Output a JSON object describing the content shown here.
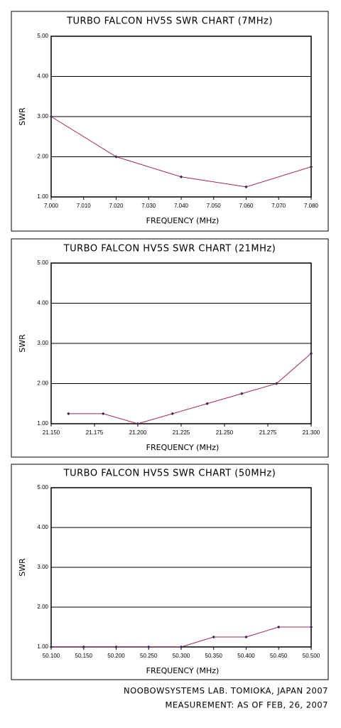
{
  "chart_data": [
    {
      "type": "line",
      "title": "TURBO FALCON HV5S SWR CHART (7MHz)",
      "xlabel": "FREQUENCY (MHz)",
      "ylabel": "SWR",
      "x": [
        7.0,
        7.02,
        7.04,
        7.06,
        7.08
      ],
      "series": [
        {
          "color": "#9b2a5a",
          "values": [
            3.0,
            2.0,
            1.5,
            1.25,
            1.75
          ]
        }
      ],
      "marker_color": "#3a2a4a",
      "xlim": [
        7.0,
        7.08
      ],
      "xticks": [
        {
          "value": 7.0,
          "label": "7.000"
        },
        {
          "value": 7.01,
          "label": "7.010"
        },
        {
          "value": 7.02,
          "label": "7.020"
        },
        {
          "value": 7.03,
          "label": "7.030"
        },
        {
          "value": 7.04,
          "label": "7.040"
        },
        {
          "value": 7.05,
          "label": "7.050"
        },
        {
          "value": 7.06,
          "label": "7.060"
        },
        {
          "value": 7.07,
          "label": "7.070"
        },
        {
          "value": 7.08,
          "label": "7.080"
        }
      ],
      "ylim": [
        1,
        5
      ],
      "yticks": [
        {
          "value": 1,
          "label": "1.00"
        },
        {
          "value": 2,
          "label": "2.00"
        },
        {
          "value": 3,
          "label": "3.00"
        },
        {
          "value": 4,
          "label": "4.00"
        },
        {
          "value": 5,
          "label": "5.00"
        }
      ],
      "grid": true
    },
    {
      "type": "line",
      "title": "TURBO FALCON HV5S SWR CHART (21MHz)",
      "xlabel": "FREQUENCY (MHz)",
      "ylabel": "SWR",
      "x": [
        21.16,
        21.18,
        21.2,
        21.22,
        21.24,
        21.26,
        21.28,
        21.3
      ],
      "series": [
        {
          "color": "#9b2a5a",
          "values": [
            1.25,
            1.25,
            1.0,
            1.25,
            1.5,
            1.75,
            2.0,
            2.75
          ]
        }
      ],
      "marker_color": "#3a2a4a",
      "xlim": [
        21.15,
        21.3
      ],
      "xticks": [
        {
          "value": 21.15,
          "label": "21.150"
        },
        {
          "value": 21.175,
          "label": "21.175"
        },
        {
          "value": 21.2,
          "label": "21.200"
        },
        {
          "value": 21.225,
          "label": "21.225"
        },
        {
          "value": 21.25,
          "label": "21.250"
        },
        {
          "value": 21.275,
          "label": "21.275"
        },
        {
          "value": 21.3,
          "label": "21.300"
        }
      ],
      "ylim": [
        1,
        5
      ],
      "yticks": [
        {
          "value": 1,
          "label": "1.00"
        },
        {
          "value": 2,
          "label": "2.00"
        },
        {
          "value": 3,
          "label": "3.00"
        },
        {
          "value": 4,
          "label": "4.00"
        },
        {
          "value": 5,
          "label": "5.00"
        }
      ],
      "grid": true
    },
    {
      "type": "line",
      "title": "TURBO FALCON HV5S SWR CHART (50MHz)",
      "xlabel": "FREQUENCY (MHz)",
      "ylabel": "SWR",
      "x": [
        50.1,
        50.15,
        50.2,
        50.25,
        50.3,
        50.35,
        50.4,
        50.45,
        50.5
      ],
      "series": [
        {
          "color": "#9b2a5a",
          "values": [
            1.0,
            1.0,
            1.0,
            1.0,
            1.0,
            1.25,
            1.25,
            1.5,
            1.5
          ]
        }
      ],
      "marker_color": "#3a2a4a",
      "xlim": [
        50.1,
        50.5
      ],
      "xticks": [
        {
          "value": 50.1,
          "label": "50.100"
        },
        {
          "value": 50.15,
          "label": "50.150"
        },
        {
          "value": 50.2,
          "label": "50.200"
        },
        {
          "value": 50.25,
          "label": "50.250"
        },
        {
          "value": 50.3,
          "label": "50.300"
        },
        {
          "value": 50.35,
          "label": "50.350"
        },
        {
          "value": 50.4,
          "label": "50.400"
        },
        {
          "value": 50.45,
          "label": "50.450"
        },
        {
          "value": 50.5,
          "label": "50.500"
        }
      ],
      "ylim": [
        1,
        5
      ],
      "yticks": [
        {
          "value": 1,
          "label": "1.00"
        },
        {
          "value": 2,
          "label": "2.00"
        },
        {
          "value": 3,
          "label": "3.00"
        },
        {
          "value": 4,
          "label": "4.00"
        },
        {
          "value": 5,
          "label": "5.00"
        }
      ],
      "grid": true
    }
  ],
  "footer": {
    "lines": [
      "NOOBOWSYSTEMS LAB. TOMIOKA, JAPAN 2007",
      "MEASUREMENT: AS OF FEB, 26, 2007"
    ]
  }
}
